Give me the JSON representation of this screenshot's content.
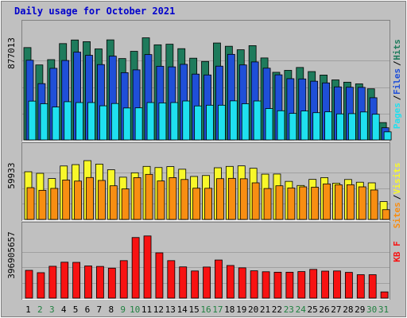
{
  "chart_data": {
    "type": "bar",
    "title": "Daily usage for October 2021",
    "categories": [
      "1",
      "2",
      "3",
      "4",
      "5",
      "6",
      "7",
      "8",
      "9",
      "10",
      "11",
      "12",
      "13",
      "14",
      "15",
      "16",
      "17",
      "18",
      "19",
      "20",
      "21",
      "22",
      "23",
      "24",
      "25",
      "26",
      "27",
      "28",
      "29",
      "30",
      "31"
    ],
    "weekend_days": [
      "2",
      "3",
      "9",
      "10",
      "16",
      "17",
      "23",
      "24",
      "30",
      "31"
    ],
    "panels": [
      {
        "name": "hits-files-pages",
        "ymax_label": "877013",
        "ymax": 877013,
        "side_labels": [
          "Pages",
          "Files",
          "Hits"
        ],
        "series": [
          {
            "name": "Hits",
            "color": "#1e7b5c",
            "values": [
              766000,
              622000,
              666000,
              799000,
              829000,
              815000,
              755000,
              830000,
              675000,
              735000,
              847000,
              789000,
              794000,
              757000,
              678000,
              651000,
              804000,
              777000,
              748000,
              782000,
              680000,
              561000,
              577000,
              601000,
              567000,
              538000,
              498000,
              479000,
              465000,
              424000,
              144000
            ]
          },
          {
            "name": "Files",
            "color": "#1f4fd8",
            "values": [
              661000,
              467000,
              594000,
              659000,
              728000,
              702000,
              625000,
              695000,
              558000,
              581000,
              708000,
              611000,
              606000,
              627000,
              546000,
              539000,
              612000,
              710000,
              622000,
              647000,
              595000,
              540000,
              508000,
              506000,
              487000,
              473000,
              440000,
              437000,
              436000,
              350000,
              101000
            ]
          },
          {
            "name": "Pages",
            "color": "#1fe0ef",
            "values": [
              322000,
              300000,
              273000,
              317000,
              310000,
              310000,
              283000,
              302000,
              265000,
              266000,
              310000,
              307000,
              310000,
              323000,
              282000,
              288000,
              288000,
              324000,
              300000,
              323000,
              260000,
              242000,
              220000,
              240000,
              226000,
              233000,
              216000,
              218000,
              232000,
              213000,
              67000
            ]
          }
        ]
      },
      {
        "name": "visits-sites",
        "ymax_label": "59933",
        "ymax": 59933,
        "side_labels": [
          "Sites",
          "Visits"
        ],
        "series": [
          {
            "name": "Visits",
            "color": "#f8f82a",
            "values": [
              45500,
              44000,
              39000,
              51000,
              52300,
              56100,
              52800,
              47400,
              40300,
              44500,
              50600,
              49500,
              50400,
              47900,
              41000,
              41900,
              49300,
              50600,
              51100,
              48800,
              43200,
              43300,
              36300,
              32400,
              38200,
              39900,
              34600,
              38100,
              35500,
              34900,
              17000
            ]
          },
          {
            "name": "Sites",
            "color": "#f88e12",
            "values": [
              30300,
              27800,
              29600,
              37600,
              36600,
              40000,
              37200,
              32100,
              29100,
              39900,
              43000,
              36700,
              39900,
              38100,
              29800,
              29700,
              38900,
              39200,
              38800,
              34900,
              29500,
              32100,
              30000,
              31100,
              30700,
              33900,
              33000,
              33100,
              31100,
              28100,
              9300
            ]
          }
        ]
      },
      {
        "name": "kbytes",
        "ymax_label": "396905657",
        "ymax": 396905657,
        "side_labels": [
          "KB F"
        ],
        "series": [
          {
            "name": "KBytes",
            "color": "#f81212",
            "values": [
              178000000,
              163000000,
              204000000,
              230000000,
              229000000,
              206000000,
              203000000,
              192000000,
              240000000,
              388000000,
              398000000,
              290000000,
              240000000,
              200000000,
              174000000,
              199000000,
              244000000,
              209000000,
              194000000,
              175000000,
              169000000,
              166000000,
              166000000,
              170000000,
              184000000,
              173000000,
              174000000,
              165000000,
              150000000,
              150000000,
              40000000
            ]
          }
        ]
      }
    ]
  },
  "colors": {
    "background": "#c0c0c0",
    "panel": "#c0c0c0",
    "title": "#0000cc",
    "weekday_label": "#000000",
    "weekend_label": "#208040",
    "sep_slash": "#000000"
  }
}
